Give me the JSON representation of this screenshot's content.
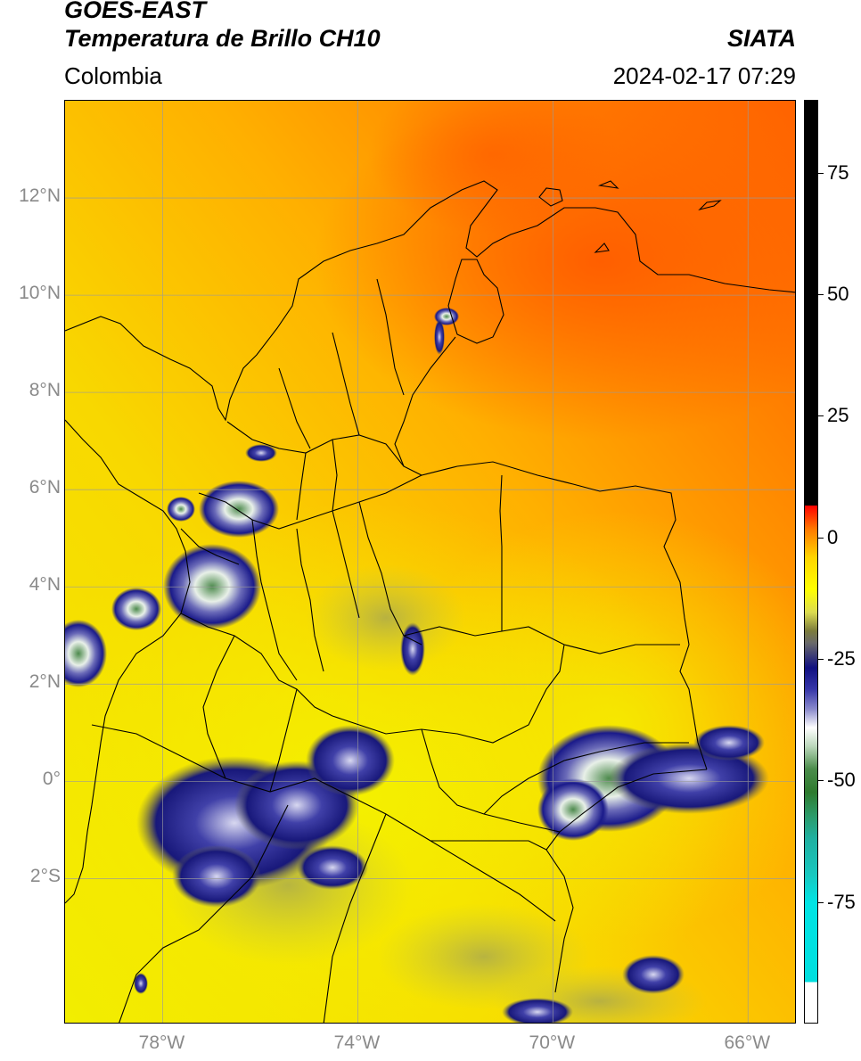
{
  "header": {
    "satellite": "GOES-EAST",
    "product": "Temperatura de Brillo CH10",
    "source": "SIATA",
    "region": "Colombia",
    "datetime": "2024-02-17 07:29"
  },
  "map": {
    "lon_range": [
      -80,
      -65
    ],
    "lat_range": [
      -5,
      14
    ],
    "lat_ticks": [
      {
        "value": 12,
        "label": "12°N"
      },
      {
        "value": 10,
        "label": "10°N"
      },
      {
        "value": 8,
        "label": "8°N"
      },
      {
        "value": 6,
        "label": "6°N"
      },
      {
        "value": 4,
        "label": "4°N"
      },
      {
        "value": 2,
        "label": "2°N"
      },
      {
        "value": 0,
        "label": "0°"
      },
      {
        "value": -2,
        "label": "2°S"
      }
    ],
    "lon_ticks": [
      {
        "value": -78,
        "label": "78°W"
      },
      {
        "value": -74,
        "label": "74°W"
      },
      {
        "value": -70,
        "label": "70°W"
      },
      {
        "value": -66,
        "label": "66°W"
      }
    ],
    "grid": true
  },
  "colorbar": {
    "range": [
      -100,
      90
    ],
    "ticks": [
      {
        "value": 75,
        "label": "75"
      },
      {
        "value": 50,
        "label": "50"
      },
      {
        "value": 25,
        "label": "25"
      },
      {
        "value": 0,
        "label": "0"
      },
      {
        "value": -25,
        "label": "-25"
      },
      {
        "value": -50,
        "label": "-50"
      },
      {
        "value": -75,
        "label": "-75"
      }
    ]
  }
}
